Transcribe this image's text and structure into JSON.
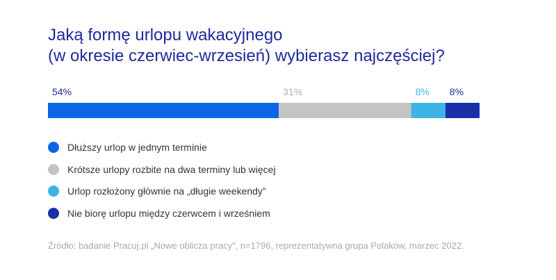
{
  "chart_data": {
    "type": "bar",
    "stacked": true,
    "orientation": "horizontal",
    "title_lines": [
      "Jaką formę urlopu wakacyjnego",
      "(w okresie czerwiec-wrzesień) wybierasz najczęściej?"
    ],
    "series": [
      {
        "name": "Dłuższy urlop w jednym terminie",
        "value": 54,
        "label": "54%",
        "color": "#0a66e6",
        "label_color": "#1f2a9c"
      },
      {
        "name": "Krótsze urlopy rozbite na dwa terminy lub więcej",
        "value": 31,
        "label": "31%",
        "color": "#c4c4c4",
        "label_color": "#b0b0b0"
      },
      {
        "name": "Urlop rozłożony głównie na „długie weekendy”",
        "value": 8,
        "label": "8%",
        "color": "#3db4e8",
        "label_color": "#3db4e8"
      },
      {
        "name": "Nie biorę urlopu między czerwcem i wrześniem",
        "value": 8,
        "label": "8%",
        "color": "#1a2fa8",
        "label_color": "#1f2a9c"
      }
    ],
    "legend_position": "bottom-left",
    "grid": false
  },
  "source": "Źródło: badanie Pracuj.pl „Nowe oblicza pracy”, n=1796, reprezentatywna grupa Polaków, marzec 2022."
}
